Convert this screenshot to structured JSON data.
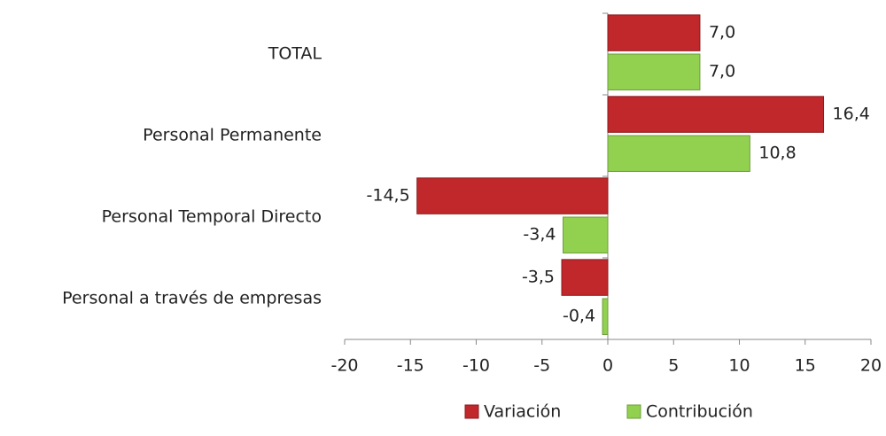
{
  "chart_data": {
    "type": "hbar",
    "categories": [
      "TOTAL",
      "Personal Permanente",
      "Personal Temporal Directo",
      "Personal a través de empresas"
    ],
    "series": [
      {
        "name": "Variación",
        "color": "#c0282b",
        "values": [
          7.0,
          16.4,
          -14.5,
          -3.5
        ],
        "value_labels": [
          "7,0",
          "16,4",
          "-14,5",
          "-3,5"
        ]
      },
      {
        "name": "Contribución",
        "color": "#92d050",
        "values": [
          7.0,
          10.8,
          -3.4,
          -0.4
        ],
        "value_labels": [
          "7,0",
          "10,8",
          "-3,4",
          "-0,4"
        ]
      }
    ],
    "xlim": [
      -20,
      20
    ],
    "xticks": [
      -20,
      -15,
      -10,
      -5,
      0,
      5,
      10,
      15,
      20
    ],
    "legend": "bottom"
  }
}
